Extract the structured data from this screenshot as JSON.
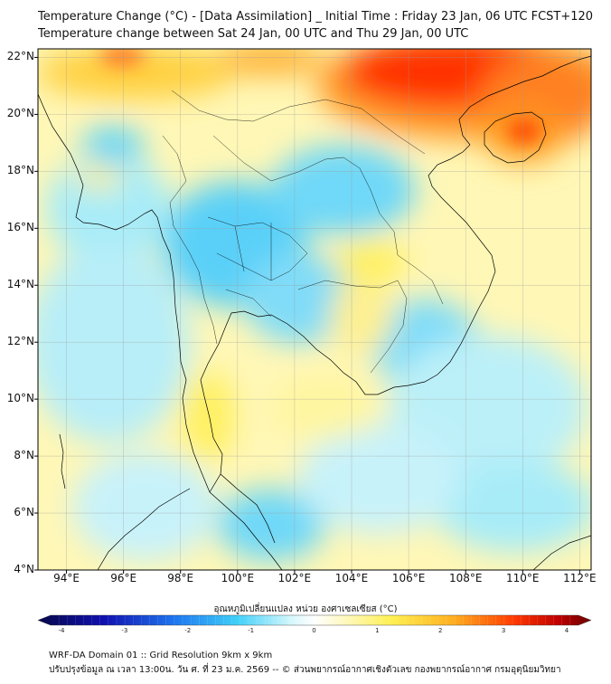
{
  "header": {
    "title_line1": "Temperature Change (°C) - [Data Assimilation] _ Initial Time : Friday 23 Jan, 06 UTC FCST+120",
    "title_line2": "Temperature change between Sat 24 Jan, 00 UTC and Thu 29 Jan, 00 UTC"
  },
  "map": {
    "lat_labels": [
      "22°N",
      "20°N",
      "18°N",
      "16°N",
      "14°N",
      "12°N",
      "10°N",
      "8°N",
      "6°N",
      "4°N"
    ],
    "lon_labels": [
      "94°E",
      "96°E",
      "98°E",
      "100°E",
      "102°E",
      "104°E",
      "106°E",
      "108°E",
      "110°E",
      "112°E"
    ],
    "lat_range": [
      4,
      22.3
    ],
    "lon_range": [
      93,
      112.4
    ],
    "grid": true
  },
  "colorbar": {
    "title": "อุณหภูมิเปลี่ยนแปลง หน่วย องศาเซลเซียส (°C)",
    "ticks": [
      "-4",
      "-3",
      "-2",
      "-1",
      "0",
      "1",
      "2",
      "3",
      "4"
    ],
    "range": [
      -4,
      4
    ],
    "colors": [
      "#08084a",
      "#1010a0",
      "#1438d8",
      "#1e78f0",
      "#28b8f8",
      "#50e0f8",
      "#b0f0f8",
      "#ffffff",
      "#fff8b0",
      "#fff050",
      "#ffd030",
      "#ffa020",
      "#ff6a10",
      "#ff2a00",
      "#c80000",
      "#780000"
    ]
  },
  "footer": {
    "line1": "WRF-DA Domain 01 :: Grid Resolution 9km x 9km",
    "line2": "ปรับปรุงข้อมูล ณ เวลา 13:00น. วัน ศ. ที่ 23 ม.ค. 2569 -- © ส่วนพยากรณ์อากาศเชิงตัวเลข กองพยากรณ์อากาศ กรมอุตุนิยมวิทยา"
  }
}
